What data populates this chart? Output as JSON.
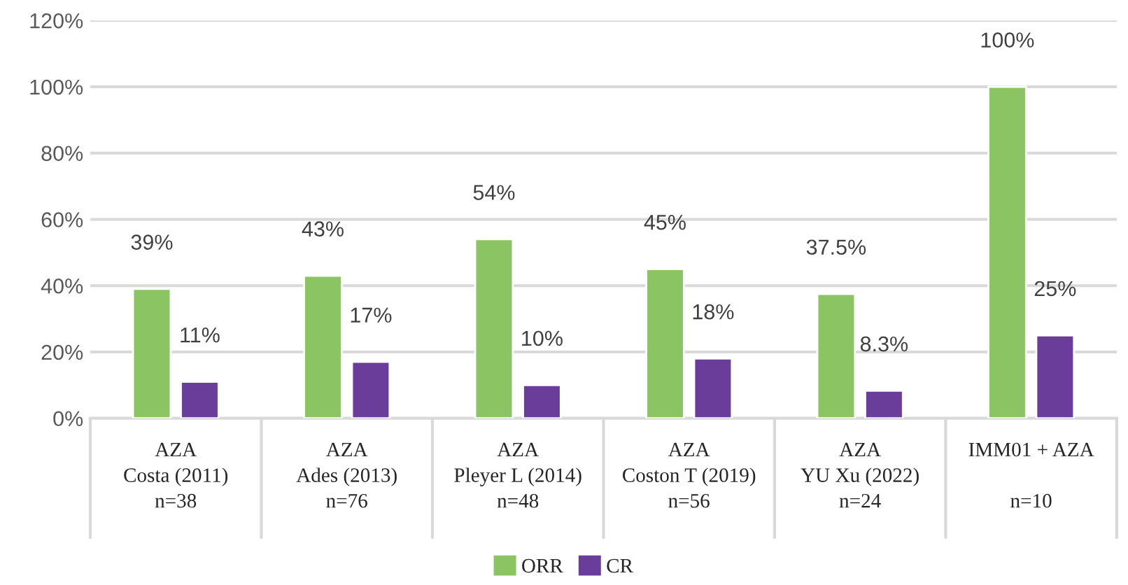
{
  "chart_data": {
    "type": "bar",
    "categories": [
      "AZA\nCosta (2011)\nn=38",
      "AZA\nAdes (2013)\nn=76",
      "AZA\nPleyer L (2014)\nn=48",
      "AZA\nCoston T (2019)\nn=56",
      "AZA\nYU Xu (2022)\nn=24",
      "IMM01 + AZA\n\nn=10"
    ],
    "series": [
      {
        "name": "ORR",
        "color": "#8bc462",
        "values": [
          39,
          43,
          54,
          45,
          37.5,
          100
        ],
        "value_labels": [
          "39%",
          "43%",
          "54%",
          "45%",
          "37.5%",
          "100%"
        ]
      },
      {
        "name": "CR",
        "color": "#6a3d9a",
        "values": [
          11,
          17,
          10,
          18,
          8.3,
          25
        ],
        "value_labels": [
          "11%",
          "17%",
          "10%",
          "18%",
          "8.3%",
          "25%"
        ]
      }
    ],
    "ylim": [
      0,
      120
    ],
    "yticks": [
      {
        "value": 0,
        "label": "0%"
      },
      {
        "value": 20,
        "label": "20%"
      },
      {
        "value": 40,
        "label": "40%"
      },
      {
        "value": 60,
        "label": "60%"
      },
      {
        "value": 80,
        "label": "80%"
      },
      {
        "value": 100,
        "label": "100%"
      },
      {
        "value": 120,
        "label": "120%"
      }
    ],
    "grid": "y",
    "legend": "bottom"
  }
}
